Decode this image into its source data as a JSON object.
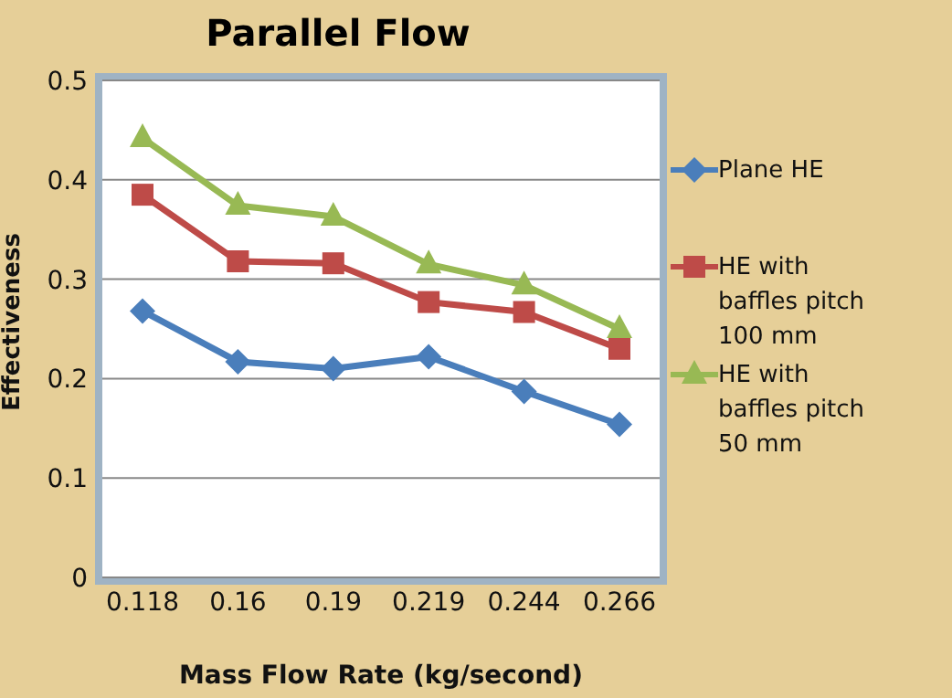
{
  "chart_data": {
    "type": "line",
    "title": "Parallel Flow",
    "xlabel": "Mass Flow Rate (kg/second)",
    "ylabel": "Effectiveness",
    "categories": [
      "0.118",
      "0.16",
      "0.19",
      "0.219",
      "0.244",
      "0.266"
    ],
    "series": [
      {
        "name": "Plane HE",
        "color": "#4a7ebb",
        "marker": "diamond",
        "values": [
          0.268,
          0.217,
          0.21,
          0.222,
          0.187,
          0.154
        ]
      },
      {
        "name": "HE with baffles pitch 100 mm",
        "color": "#be4b48",
        "marker": "square",
        "values": [
          0.385,
          0.318,
          0.316,
          0.277,
          0.267,
          0.23
        ]
      },
      {
        "name": "HE with baffles pitch 50 mm",
        "color": "#98b954",
        "marker": "triangle",
        "values": [
          0.442,
          0.374,
          0.363,
          0.315,
          0.294,
          0.25
        ]
      }
    ],
    "ylim": [
      0,
      0.5
    ],
    "yticks": [
      0,
      0.1,
      0.2,
      0.3,
      0.4,
      0.5
    ],
    "grid": "y",
    "legend": "right",
    "line_style": "solid"
  }
}
